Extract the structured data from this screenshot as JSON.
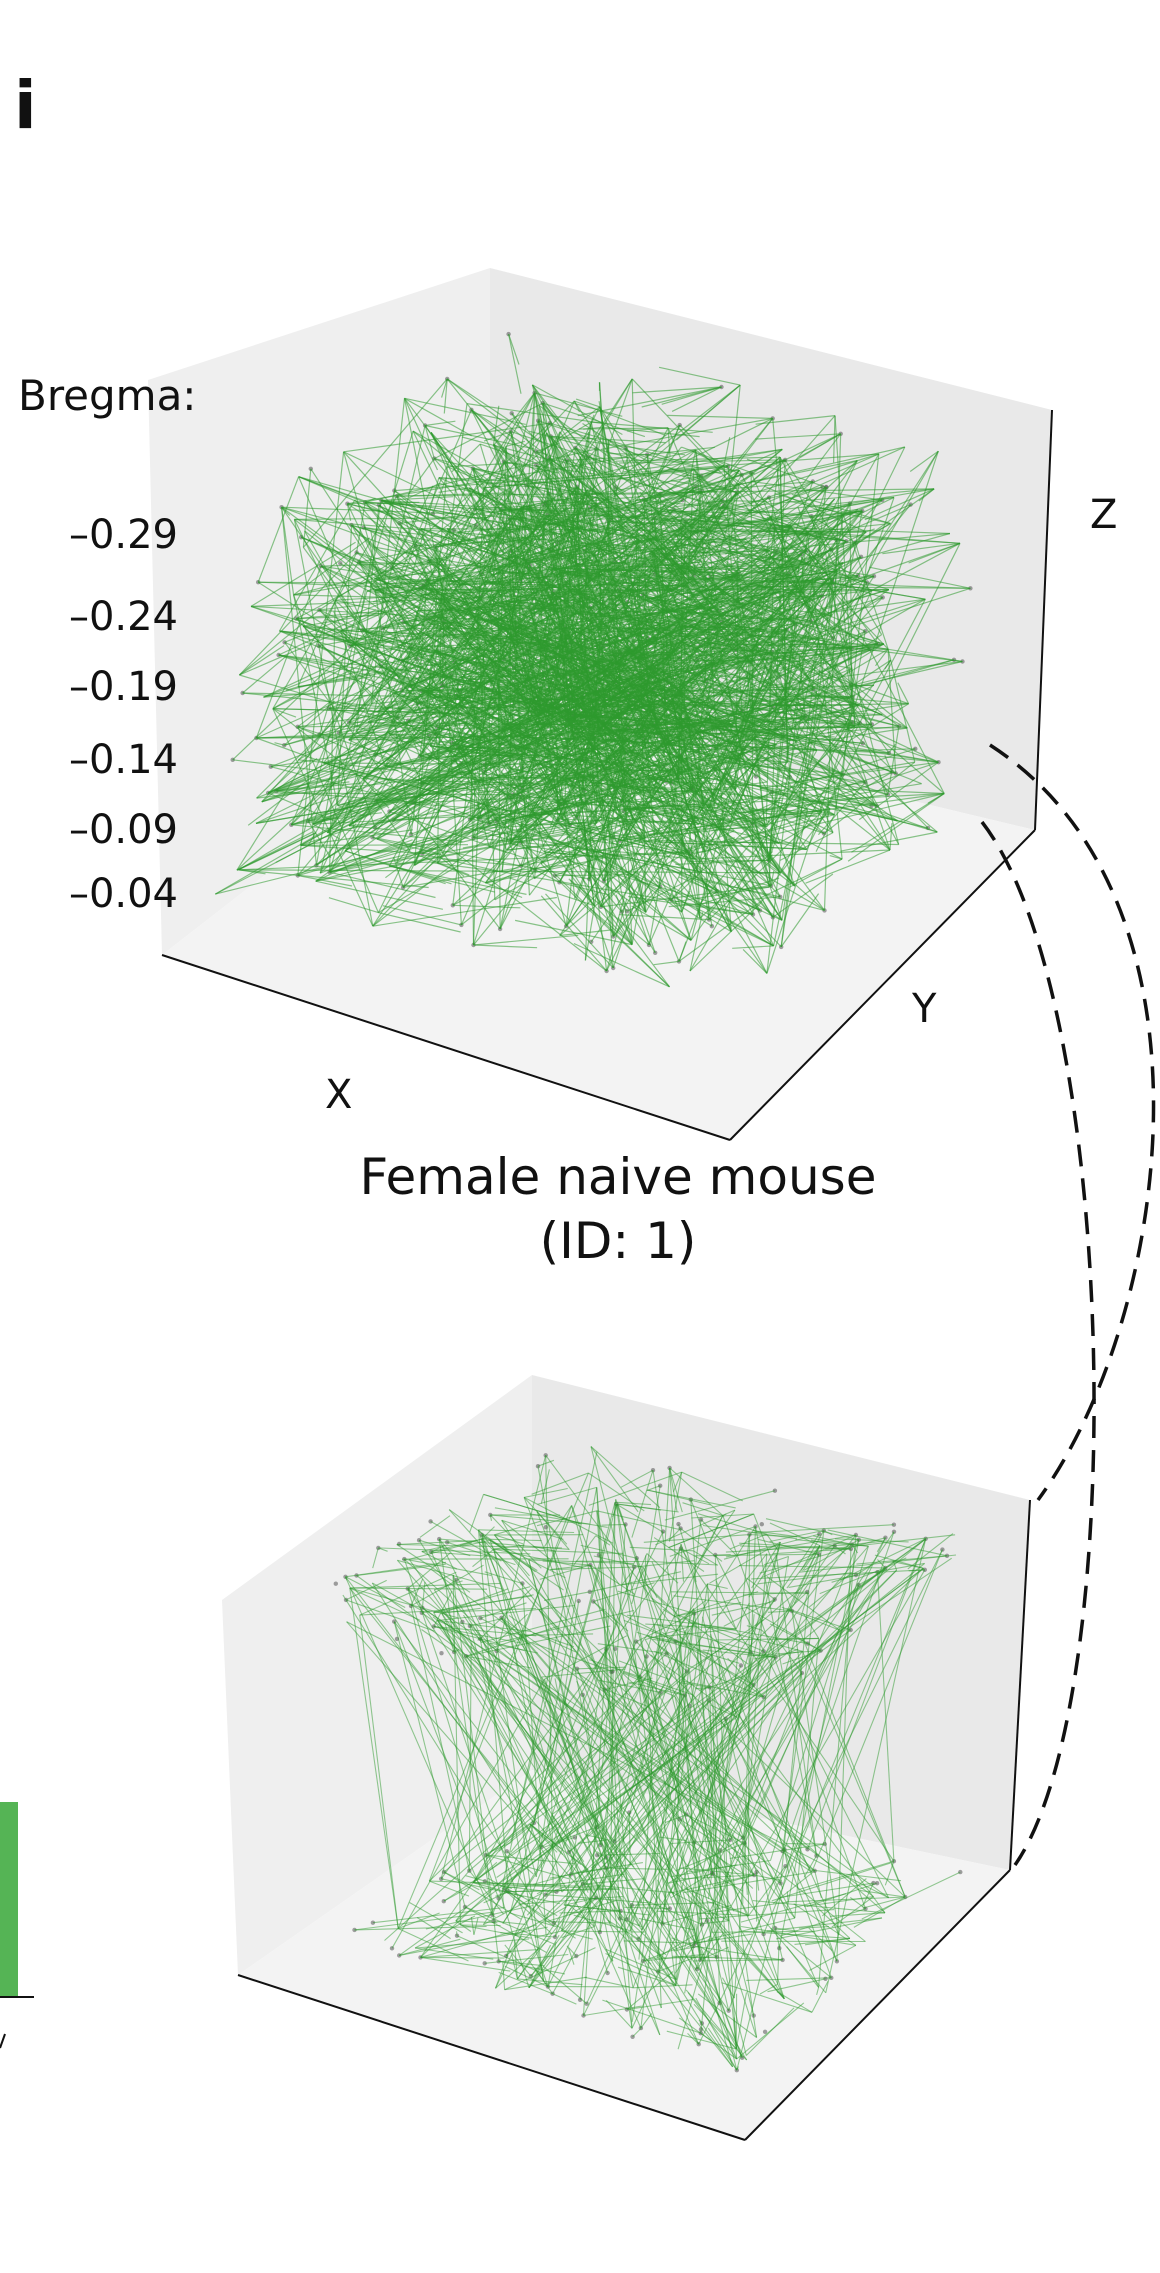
{
  "panel_label": "i",
  "bregma_label": "Bregma:",
  "mouse_caption_line1": "Female naive mouse",
  "mouse_caption_line2": "(ID: 1)",
  "colors": {
    "edge": "#2e9a2e",
    "node": "#555555",
    "pane": "#ededed",
    "connector": "#111111",
    "side_bar": "#55b455"
  },
  "chart_data": [
    {
      "type": "scatter",
      "title": "",
      "xlabel": "X",
      "ylabel": "Y",
      "zlabel": "Z",
      "z_tick_labels": [
        "–0.29",
        "–0.24",
        "–0.19",
        "–0.14",
        "–0.09",
        "–0.04"
      ],
      "z_levels": [
        -0.29,
        -0.24,
        -0.19,
        -0.14,
        -0.09,
        -0.04
      ],
      "series": [
        {
          "values_description_ref": "nodes_and_edges"
        }
      ],
      "grid": false
    },
    {
      "type": "scatter",
      "title": "",
      "xlabel": "",
      "ylabel": "",
      "zlabel": "",
      "layers": 2,
      "grid": false
    }
  ]
}
